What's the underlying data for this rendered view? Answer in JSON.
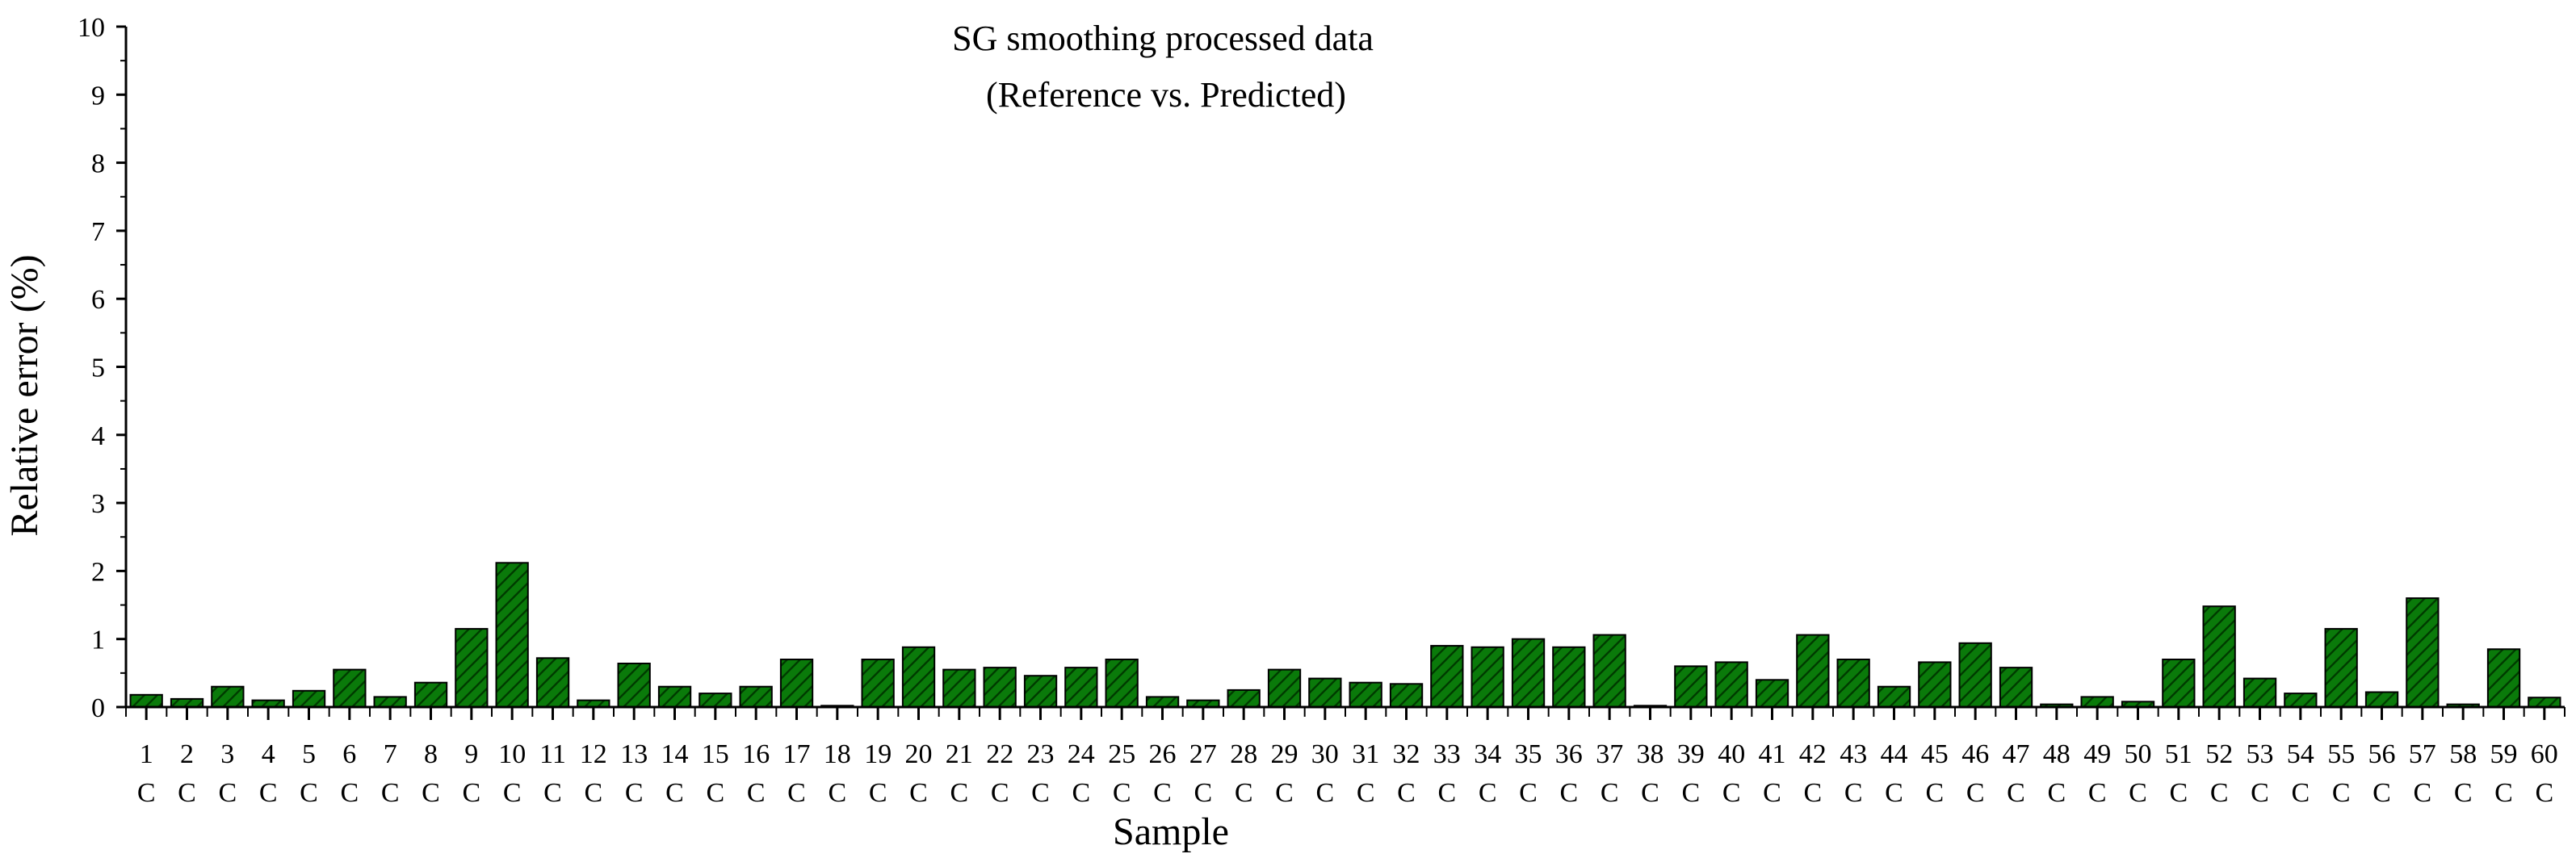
{
  "chart_data": {
    "type": "bar",
    "title_lines": [
      "SG smoothing processed data",
      "(Reference vs. Predicted)"
    ],
    "xlabel": "Sample",
    "ylabel": "Relative error (%)",
    "ylim": [
      0,
      10
    ],
    "yticks": [
      "0",
      "1",
      "2",
      "3",
      "4",
      "5",
      "6",
      "7",
      "8",
      "9",
      "10"
    ],
    "categories": [
      "1",
      "2",
      "3",
      "4",
      "5",
      "6",
      "7",
      "8",
      "9",
      "10",
      "11",
      "12",
      "13",
      "14",
      "15",
      "16",
      "17",
      "18",
      "19",
      "20",
      "21",
      "22",
      "23",
      "24",
      "25",
      "26",
      "27",
      "28",
      "29",
      "30",
      "31",
      "32",
      "33",
      "34",
      "35",
      "36",
      "37",
      "38",
      "39",
      "40",
      "41",
      "42",
      "43",
      "44",
      "45",
      "46",
      "47",
      "48",
      "49",
      "50",
      "51",
      "52",
      "53",
      "54",
      "55",
      "56",
      "57",
      "58",
      "59",
      "60"
    ],
    "category_sublabel": "C",
    "values": [
      0.18,
      0.12,
      0.3,
      0.1,
      0.24,
      0.55,
      0.15,
      0.36,
      1.15,
      2.12,
      0.72,
      0.1,
      0.64,
      0.3,
      0.2,
      0.3,
      0.7,
      0.02,
      0.7,
      0.88,
      0.55,
      0.58,
      0.46,
      0.58,
      0.7,
      0.15,
      0.1,
      0.25,
      0.55,
      0.42,
      0.36,
      0.34,
      0.9,
      0.88,
      1.0,
      0.88,
      1.06,
      0.02,
      0.6,
      0.66,
      0.4,
      1.06,
      0.7,
      0.3,
      0.66,
      0.94,
      0.58,
      0.04,
      0.15,
      0.08,
      0.7,
      1.48,
      0.42,
      0.2,
      1.15,
      0.22,
      1.6,
      0.04,
      0.85,
      0.14
    ],
    "bar_color": "#0a7a0a",
    "hatch": "diagonal",
    "grid": false,
    "legend": "none"
  }
}
